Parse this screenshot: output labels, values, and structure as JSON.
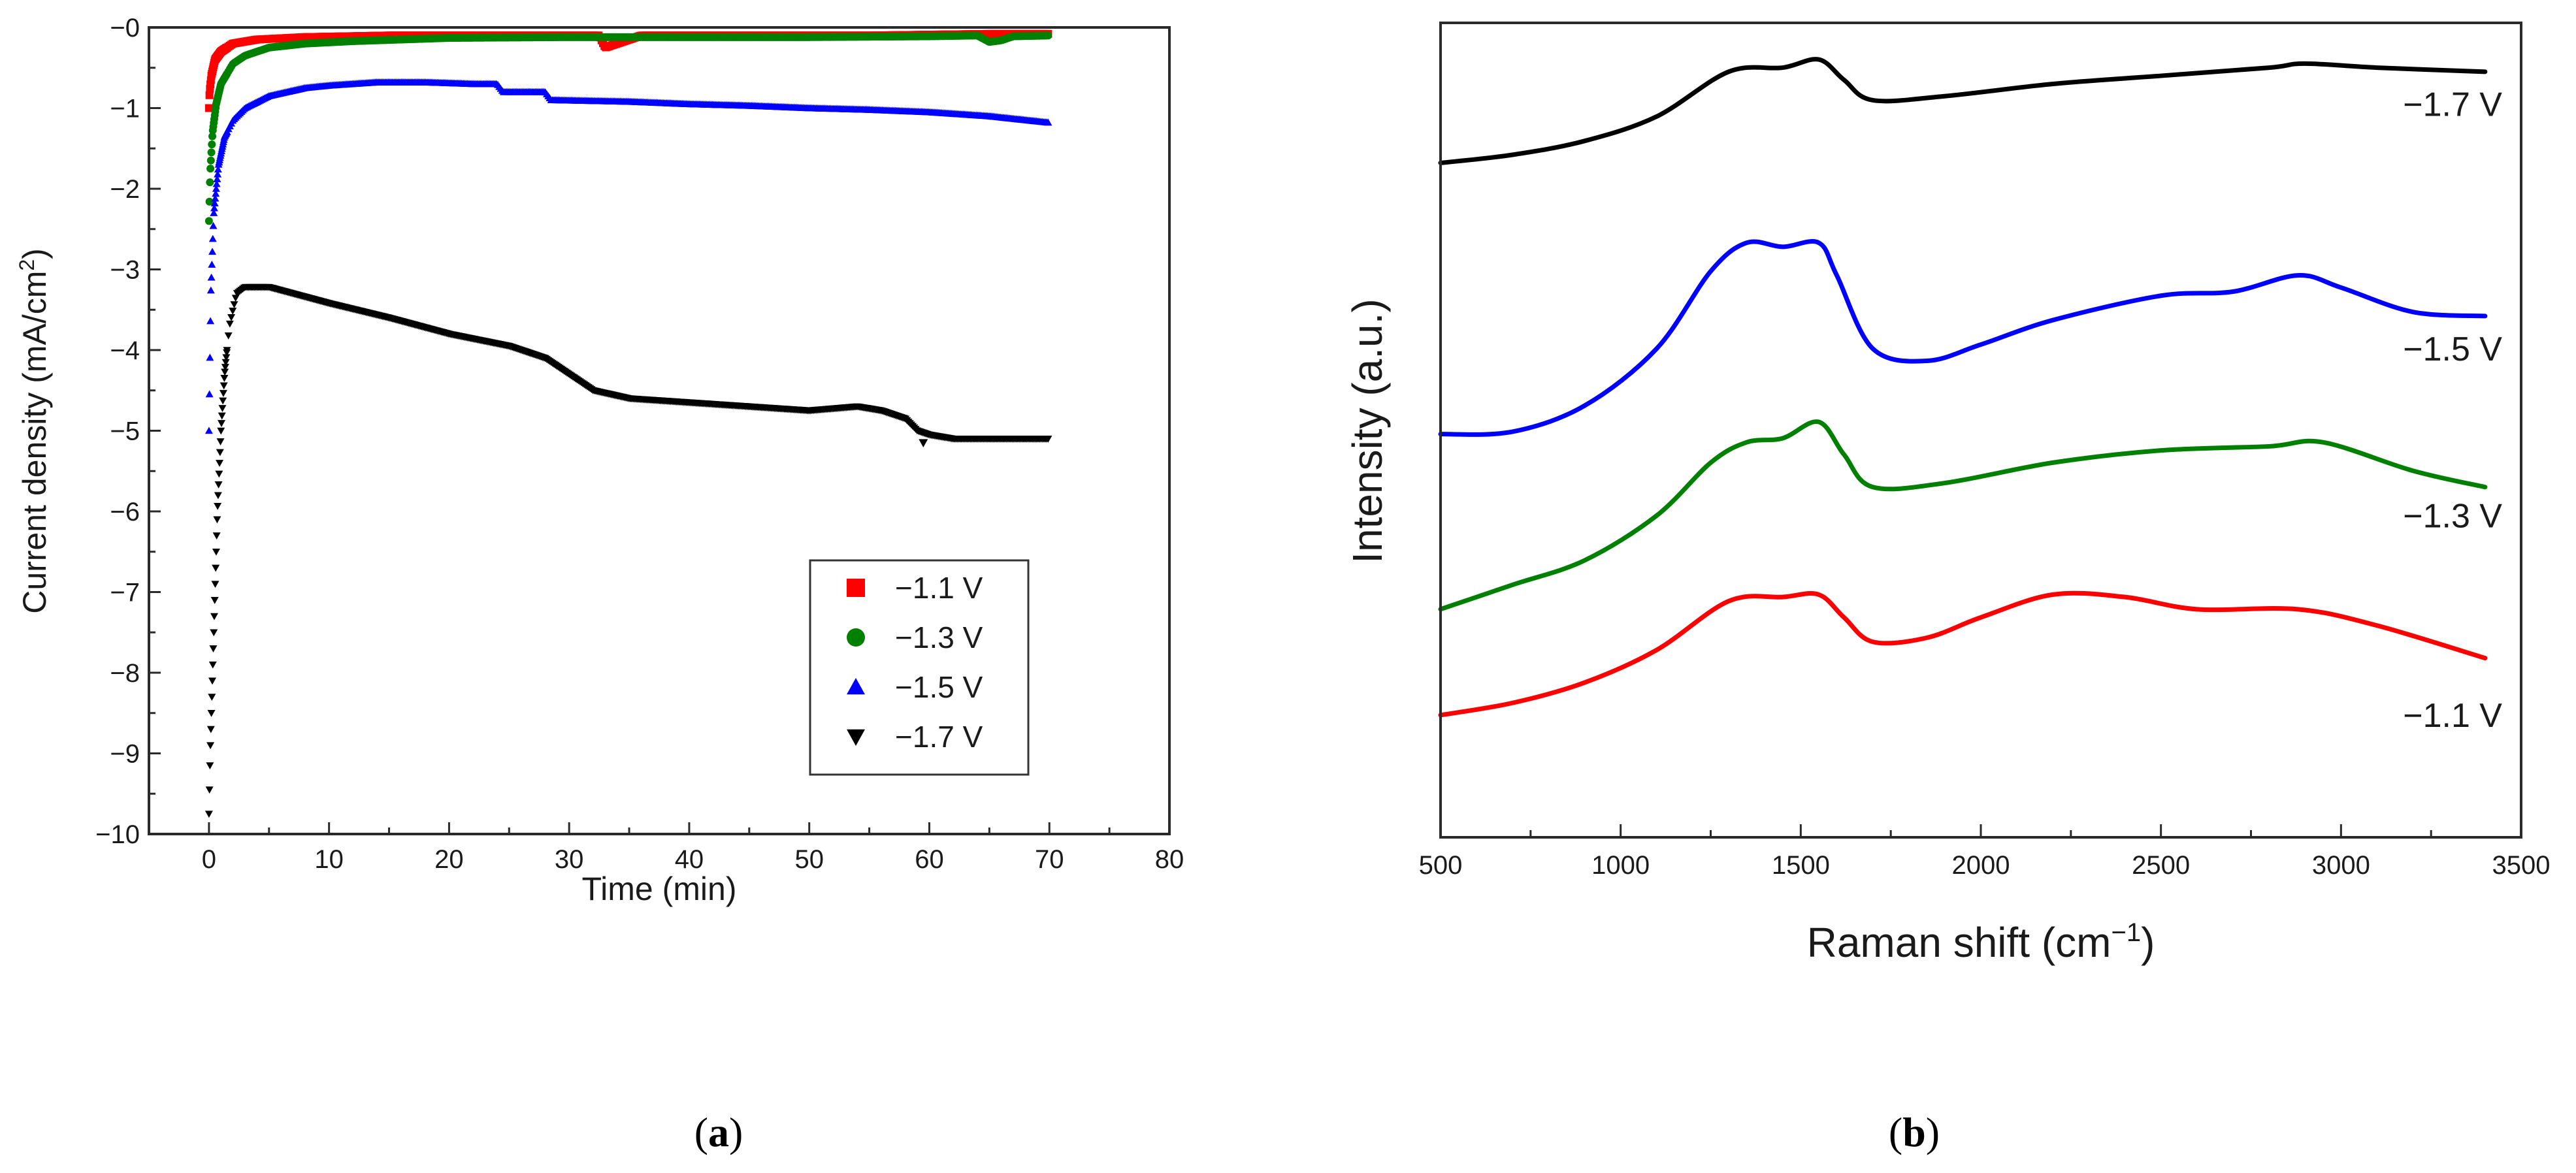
{
  "chart_data": [
    {
      "type": "scatter",
      "panel": "a",
      "panel_label": "(a)",
      "xlabel": "Time (min)",
      "ylabel_main": "Current density (mA/cm",
      "ylabel_sup": "2",
      "ylabel_end": ")",
      "xlim": [
        -5,
        80
      ],
      "ylim": [
        -10,
        0
      ],
      "xticks": [
        0,
        10,
        20,
        30,
        40,
        50,
        60,
        70,
        80
      ],
      "yticks": [
        -10,
        -9,
        -8,
        -7,
        -6,
        -5,
        -4,
        -3,
        -2,
        -1,
        0
      ],
      "xtick_labels": [
        "0",
        "10",
        "20",
        "30",
        "40",
        "50",
        "60",
        "70",
        "80"
      ],
      "ytick_labels": [
        "−10",
        "−9",
        "−8",
        "−7",
        "−6",
        "−5",
        "−4",
        "−3",
        "−2",
        "−1",
        "−0"
      ],
      "legend_position": "bottom-right",
      "series": [
        {
          "name": "−1.1 V",
          "color": "#ff0000",
          "marker": "square",
          "points": [
            [
              0,
              -1.0
            ],
            [
              0.05,
              -0.8
            ],
            [
              0.2,
              -0.6
            ],
            [
              0.5,
              -0.4
            ],
            [
              1,
              -0.3
            ],
            [
              2,
              -0.2
            ],
            [
              4,
              -0.15
            ],
            [
              8,
              -0.12
            ],
            [
              15,
              -0.1
            ],
            [
              25,
              -0.1
            ],
            [
              32.5,
              -0.1
            ],
            [
              33,
              -0.25
            ],
            [
              34,
              -0.2
            ],
            [
              35,
              -0.15
            ],
            [
              36,
              -0.1
            ],
            [
              45,
              -0.1
            ],
            [
              55,
              -0.1
            ],
            [
              65,
              -0.08
            ],
            [
              70,
              -0.08
            ]
          ]
        },
        {
          "name": "−1.3 V",
          "color": "#008000",
          "marker": "circle",
          "points": [
            [
              0,
              -2.4
            ],
            [
              0.1,
              -1.8
            ],
            [
              0.3,
              -1.3
            ],
            [
              0.6,
              -0.95
            ],
            [
              1,
              -0.7
            ],
            [
              2,
              -0.45
            ],
            [
              3,
              -0.35
            ],
            [
              5,
              -0.25
            ],
            [
              8,
              -0.2
            ],
            [
              12,
              -0.17
            ],
            [
              20,
              -0.13
            ],
            [
              30,
              -0.12
            ],
            [
              40,
              -0.12
            ],
            [
              50,
              -0.12
            ],
            [
              60,
              -0.11
            ],
            [
              64,
              -0.1
            ],
            [
              65,
              -0.18
            ],
            [
              66,
              -0.16
            ],
            [
              67,
              -0.11
            ],
            [
              70,
              -0.1
            ]
          ]
        },
        {
          "name": "−1.5 V",
          "color": "#0000ff",
          "marker": "triangle",
          "points": [
            [
              0,
              -5.0
            ],
            [
              0.15,
              -3.3
            ],
            [
              0.4,
              -2.3
            ],
            [
              0.8,
              -1.7
            ],
            [
              1.3,
              -1.35
            ],
            [
              2,
              -1.15
            ],
            [
              3,
              -1.0
            ],
            [
              5,
              -0.85
            ],
            [
              8,
              -0.75
            ],
            [
              10,
              -0.72
            ],
            [
              14,
              -0.68
            ],
            [
              18,
              -0.68
            ],
            [
              22,
              -0.7
            ],
            [
              24,
              -0.7
            ],
            [
              24.5,
              -0.8
            ],
            [
              28,
              -0.8
            ],
            [
              28.5,
              -0.9
            ],
            [
              35,
              -0.92
            ],
            [
              40,
              -0.95
            ],
            [
              45,
              -0.97
            ],
            [
              50,
              -1.0
            ],
            [
              55,
              -1.02
            ],
            [
              60,
              -1.05
            ],
            [
              65,
              -1.1
            ],
            [
              70,
              -1.18
            ]
          ]
        },
        {
          "name": "−1.7 V",
          "color": "#000000",
          "marker": "triangle-down",
          "points": [
            [
              0,
              -9.75
            ],
            [
              0.1,
              -9.0
            ],
            [
              0.3,
              -8.0
            ],
            [
              0.5,
              -7.0
            ],
            [
              0.7,
              -6.0
            ],
            [
              1.0,
              -5.0
            ],
            [
              1.3,
              -4.3
            ],
            [
              1.7,
              -3.7
            ],
            [
              2.3,
              -3.3
            ],
            [
              3,
              -3.22
            ],
            [
              5,
              -3.22
            ],
            [
              7,
              -3.3
            ],
            [
              10,
              -3.42
            ],
            [
              15,
              -3.6
            ],
            [
              20,
              -3.8
            ],
            [
              25,
              -3.95
            ],
            [
              28,
              -4.1
            ],
            [
              30,
              -4.3
            ],
            [
              32,
              -4.5
            ],
            [
              35,
              -4.6
            ],
            [
              40,
              -4.65
            ],
            [
              45,
              -4.7
            ],
            [
              50,
              -4.75
            ],
            [
              54,
              -4.7
            ],
            [
              56,
              -4.75
            ],
            [
              58,
              -4.85
            ],
            [
              59,
              -5.0
            ],
            [
              60,
              -5.05
            ],
            [
              62,
              -5.1
            ],
            [
              66,
              -5.1
            ],
            [
              70,
              -5.1
            ]
          ],
          "outliers": [
            [
              59.5,
              -5.15
            ]
          ]
        }
      ]
    },
    {
      "type": "line",
      "panel": "b",
      "panel_label": "(b)",
      "xlabel_main": "Raman shift (cm",
      "xlabel_sup": "−1",
      "xlabel_end": ")",
      "ylabel": "Intensity (a.u.)",
      "xlim": [
        500,
        3500
      ],
      "ylim": [
        0,
        10
      ],
      "xticks": [
        500,
        1000,
        1500,
        2000,
        2500,
        3000,
        3500
      ],
      "xtick_labels": [
        "500",
        "1000",
        "1500",
        "2000",
        "2500",
        "3000",
        "3500"
      ],
      "ytick_labels_shown": false,
      "series": [
        {
          "name": "−1.7 V",
          "color": "#000000",
          "points": [
            [
              500,
              8.28
            ],
            [
              700,
              8.38
            ],
            [
              900,
              8.55
            ],
            [
              1100,
              8.85
            ],
            [
              1300,
              9.4
            ],
            [
              1450,
              9.45
            ],
            [
              1550,
              9.55
            ],
            [
              1620,
              9.3
            ],
            [
              1700,
              9.05
            ],
            [
              1900,
              9.1
            ],
            [
              2200,
              9.25
            ],
            [
              2500,
              9.35
            ],
            [
              2800,
              9.45
            ],
            [
              2900,
              9.5
            ],
            [
              3100,
              9.45
            ],
            [
              3400,
              9.4
            ]
          ]
        },
        {
          "name": "−1.5 V",
          "color": "#0000ff",
          "points": [
            [
              500,
              4.95
            ],
            [
              700,
              4.98
            ],
            [
              900,
              5.3
            ],
            [
              1100,
              6.0
            ],
            [
              1250,
              6.95
            ],
            [
              1350,
              7.3
            ],
            [
              1450,
              7.25
            ],
            [
              1550,
              7.3
            ],
            [
              1600,
              6.9
            ],
            [
              1700,
              6.0
            ],
            [
              1850,
              5.85
            ],
            [
              2000,
              6.05
            ],
            [
              2200,
              6.35
            ],
            [
              2500,
              6.65
            ],
            [
              2700,
              6.7
            ],
            [
              2880,
              6.9
            ],
            [
              3000,
              6.75
            ],
            [
              3200,
              6.45
            ],
            [
              3400,
              6.4
            ]
          ]
        },
        {
          "name": "−1.3 V",
          "color": "#008000",
          "points": [
            [
              500,
              2.8
            ],
            [
              700,
              3.1
            ],
            [
              900,
              3.4
            ],
            [
              1100,
              3.95
            ],
            [
              1250,
              4.6
            ],
            [
              1350,
              4.85
            ],
            [
              1450,
              4.9
            ],
            [
              1550,
              5.1
            ],
            [
              1620,
              4.7
            ],
            [
              1700,
              4.3
            ],
            [
              1900,
              4.35
            ],
            [
              2200,
              4.6
            ],
            [
              2500,
              4.75
            ],
            [
              2800,
              4.8
            ],
            [
              2950,
              4.85
            ],
            [
              3200,
              4.5
            ],
            [
              3400,
              4.3
            ]
          ]
        },
        {
          "name": "−1.1 V",
          "color": "#ff0000",
          "points": [
            [
              500,
              1.5
            ],
            [
              700,
              1.65
            ],
            [
              900,
              1.9
            ],
            [
              1100,
              2.3
            ],
            [
              1300,
              2.9
            ],
            [
              1450,
              2.95
            ],
            [
              1550,
              2.98
            ],
            [
              1620,
              2.7
            ],
            [
              1700,
              2.4
            ],
            [
              1850,
              2.45
            ],
            [
              2000,
              2.7
            ],
            [
              2200,
              2.98
            ],
            [
              2400,
              2.95
            ],
            [
              2600,
              2.8
            ],
            [
              2880,
              2.8
            ],
            [
              3100,
              2.6
            ],
            [
              3400,
              2.2
            ]
          ]
        }
      ],
      "label_order": [
        "−1.7 V",
        "−1.5 V",
        "−1.3 V",
        "−1.1 V"
      ]
    }
  ]
}
